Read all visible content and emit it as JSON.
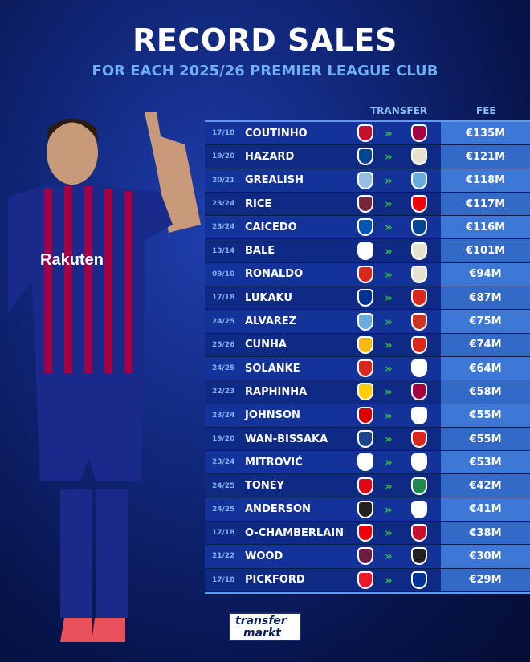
{
  "header": {
    "title": "RECORD SALES",
    "subtitle": "FOR EACH 2025/26 PREMIER LEAGUE CLUB"
  },
  "columns": {
    "transfer": "TRANSFER",
    "fee": "FEE"
  },
  "rows": [
    {
      "season": "17/18",
      "player": "COUTINHO",
      "from": "liverpool-crest",
      "to": "barcelona-crest",
      "from_color": "#c8102e",
      "to_color": "#a50044",
      "fee": "€135M"
    },
    {
      "season": "19/20",
      "player": "HAZARD",
      "from": "chelsea-crest",
      "to": "real-madrid-crest",
      "from_color": "#034694",
      "to_color": "#e8e3d0",
      "fee": "€121M"
    },
    {
      "season": "20/21",
      "player": "GREALISH",
      "from": "aston-villa-crest",
      "to": "man-city-crest",
      "from_color": "#95bfe5",
      "to_color": "#6cabdd",
      "fee": "€118M"
    },
    {
      "season": "23/24",
      "player": "RICE",
      "from": "west-ham-crest",
      "to": "arsenal-crest",
      "from_color": "#7a263a",
      "to_color": "#ef0107",
      "fee": "€117M"
    },
    {
      "season": "23/24",
      "player": "CAICEDO",
      "from": "brighton-crest",
      "to": "chelsea-crest",
      "from_color": "#0057b8",
      "to_color": "#034694",
      "fee": "€116M"
    },
    {
      "season": "13/14",
      "player": "BALE",
      "from": "tottenham-crest",
      "to": "real-madrid-crest",
      "from_color": "#ffffff",
      "to_color": "#e8e3d0",
      "fee": "€101M"
    },
    {
      "season": "09/10",
      "player": "RONALDO",
      "from": "man-united-crest",
      "to": "real-madrid-crest",
      "from_color": "#da291c",
      "to_color": "#e8e3d0",
      "fee": "€94M"
    },
    {
      "season": "17/18",
      "player": "LUKAKU",
      "from": "everton-crest",
      "to": "man-united-crest",
      "from_color": "#003399",
      "to_color": "#da291c",
      "fee": "€87M"
    },
    {
      "season": "24/25",
      "player": "ALVAREZ",
      "from": "man-city-crest",
      "to": "atletico-madrid-crest",
      "from_color": "#6cabdd",
      "to_color": "#cb3524",
      "fee": "€75M"
    },
    {
      "season": "25/26",
      "player": "CUNHA",
      "from": "wolves-crest",
      "to": "man-united-crest",
      "from_color": "#fdb913",
      "to_color": "#da291c",
      "fee": "€74M"
    },
    {
      "season": "24/25",
      "player": "SOLANKE",
      "from": "bournemouth-crest",
      "to": "tottenham-crest",
      "from_color": "#da291c",
      "to_color": "#ffffff",
      "fee": "€64M"
    },
    {
      "season": "22/23",
      "player": "RAPHINHA",
      "from": "leeds-crest",
      "to": "barcelona-crest",
      "from_color": "#ffcd00",
      "to_color": "#a50044",
      "fee": "€58M"
    },
    {
      "season": "23/24",
      "player": "JOHNSON",
      "from": "nottingham-forest-crest",
      "to": "tottenham-crest",
      "from_color": "#dd0000",
      "to_color": "#ffffff",
      "fee": "€55M"
    },
    {
      "season": "19/20",
      "player": "WAN-BISSAKA",
      "from": "crystal-palace-crest",
      "to": "man-united-crest",
      "from_color": "#1b458f",
      "to_color": "#da291c",
      "fee": "€55M"
    },
    {
      "season": "23/24",
      "player": "MITROVIĆ",
      "from": "fulham-crest",
      "to": "al-hilal-crest",
      "from_color": "#ffffff",
      "to_color": "#ffffff",
      "fee": "€53M"
    },
    {
      "season": "24/25",
      "player": "TONEY",
      "from": "brentford-crest",
      "to": "al-ahli-crest",
      "from_color": "#e30613",
      "to_color": "#1f8a4c",
      "fee": "€42M"
    },
    {
      "season": "24/25",
      "player": "ANDERSON",
      "from": "newcastle-crest",
      "to": "nottingham-forest-crest",
      "from_color": "#241f20",
      "to_color": "#ffffff",
      "fee": "€41M"
    },
    {
      "season": "17/18",
      "player": "O-CHAMBERLAIN",
      "from": "arsenal-crest",
      "to": "liverpool-crest",
      "from_color": "#ef0107",
      "to_color": "#c8102e",
      "fee": "€38M"
    },
    {
      "season": "21/22",
      "player": "WOOD",
      "from": "burnley-crest",
      "to": "newcastle-crest",
      "from_color": "#6c1d45",
      "to_color": "#241f20",
      "fee": "€30M"
    },
    {
      "season": "17/18",
      "player": "PICKFORD",
      "from": "sunderland-crest",
      "to": "everton-crest",
      "from_color": "#eb172b",
      "to_color": "#003399",
      "fee": "€29M"
    }
  ],
  "arrow": "»",
  "logo": {
    "line1": "transfer",
    "line2": "markt"
  }
}
